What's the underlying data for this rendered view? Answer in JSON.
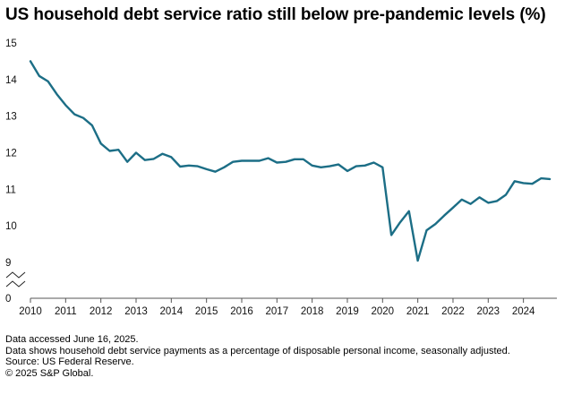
{
  "chart_data": {
    "type": "line",
    "title": "US household debt service ratio still below pre-pandemic levels (%)",
    "xlabel": "",
    "ylabel": "",
    "y_ticks": [
      0,
      9,
      10,
      11,
      12,
      13,
      14,
      15
    ],
    "y_axis_break": "between 0 and 9",
    "x_ticks": [
      "2010",
      "2011",
      "2012",
      "2013",
      "2014",
      "2015",
      "2016",
      "2017",
      "2018",
      "2019",
      "2020",
      "2021",
      "2022",
      "2023",
      "2024"
    ],
    "ylim": [
      9,
      15
    ],
    "grid": false,
    "series": [
      {
        "name": "Household debt service ratio",
        "color": "#1c6e86",
        "x": [
          2010.0,
          2010.25,
          2010.5,
          2010.75,
          2011.0,
          2011.25,
          2011.5,
          2011.75,
          2012.0,
          2012.25,
          2012.5,
          2012.75,
          2013.0,
          2013.25,
          2013.5,
          2013.75,
          2014.0,
          2014.25,
          2014.5,
          2014.75,
          2015.0,
          2015.25,
          2015.5,
          2015.75,
          2016.0,
          2016.25,
          2016.5,
          2016.75,
          2017.0,
          2017.25,
          2017.5,
          2017.75,
          2018.0,
          2018.25,
          2018.5,
          2018.75,
          2019.0,
          2019.25,
          2019.5,
          2019.75,
          2020.0,
          2020.25,
          2020.5,
          2020.75,
          2021.0,
          2021.25,
          2021.5,
          2021.75,
          2022.0,
          2022.25,
          2022.5,
          2022.75,
          2023.0,
          2023.25,
          2023.5,
          2023.75,
          2024.0,
          2024.25,
          2024.5,
          2024.75
        ],
        "values": [
          14.5,
          14.1,
          13.95,
          13.6,
          13.3,
          13.05,
          12.95,
          12.75,
          12.25,
          12.05,
          12.08,
          11.75,
          12.0,
          11.8,
          11.83,
          11.97,
          11.88,
          11.62,
          11.65,
          11.63,
          11.55,
          11.48,
          11.6,
          11.75,
          11.78,
          11.78,
          11.78,
          11.85,
          11.73,
          11.75,
          11.82,
          11.82,
          11.65,
          11.6,
          11.63,
          11.68,
          11.5,
          11.63,
          11.65,
          11.73,
          11.6,
          9.75,
          10.1,
          10.4,
          9.05,
          9.88,
          10.05,
          10.28,
          10.5,
          10.72,
          10.6,
          10.78,
          10.63,
          10.68,
          10.85,
          11.22,
          11.17,
          11.15,
          11.3,
          11.28
        ]
      }
    ]
  },
  "footer": {
    "line1": "Data accessed June 16, 2025.",
    "line2": "Data shows household debt service payments as a percentage of disposable personal income, seasonally adjusted.",
    "line3": "Source: US Federal Reserve.",
    "line4": "© 2025 S&P Global."
  }
}
